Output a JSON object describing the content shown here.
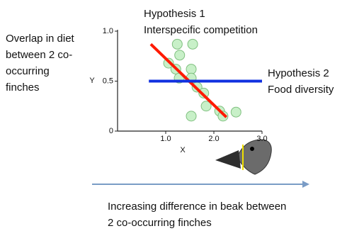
{
  "chart_data": {
    "type": "scatter",
    "x": [
      1.24,
      1.56,
      1.29,
      1.06,
      1.53,
      1.21,
      1.28,
      1.53,
      1.65,
      1.79,
      1.84,
      1.53,
      2.12,
      2.19,
      2.46
    ],
    "y": [
      0.87,
      0.87,
      0.76,
      0.68,
      0.62,
      0.62,
      0.53,
      0.53,
      0.44,
      0.38,
      0.25,
      0.15,
      0.2,
      0.15,
      0.19
    ],
    "point_color": "#c8f0c8",
    "point_edge_color": "#80c080",
    "xlim": [
      0,
      3
    ],
    "ylim": [
      0,
      1
    ],
    "xticks": [
      {
        "value": 1,
        "label": "1.0"
      },
      {
        "value": 2,
        "label": "2.0"
      },
      {
        "value": 3,
        "label": "3.0"
      }
    ],
    "yticks": [
      0,
      {
        "value": 0.5,
        "label": "0.5"
      },
      {
        "value": 1,
        "label": "1.0"
      }
    ],
    "xlabel": "X",
    "ylabel": "Y",
    "fit_lines": [
      {
        "name_lines": [
          "Hypothesis 1",
          "Interspecific competition"
        ],
        "color": "#ff1a00",
        "x": [
          0.69,
          2.26
        ],
        "y": [
          0.87,
          0.14
        ]
      },
      {
        "name_lines": [
          "Hypothesis 2",
          "Food diversity"
        ],
        "color": "#1030e0",
        "x": [
          0.65,
          3.0
        ],
        "y": [
          0.5,
          0.5
        ]
      }
    ]
  },
  "description_lines": [
    "Overlap in diet",
    "between 2 co-",
    "occurring",
    "finches"
  ],
  "arrow_caption_lines": [
    "Increasing difference in beak between",
    "2 co-occurring finches"
  ]
}
